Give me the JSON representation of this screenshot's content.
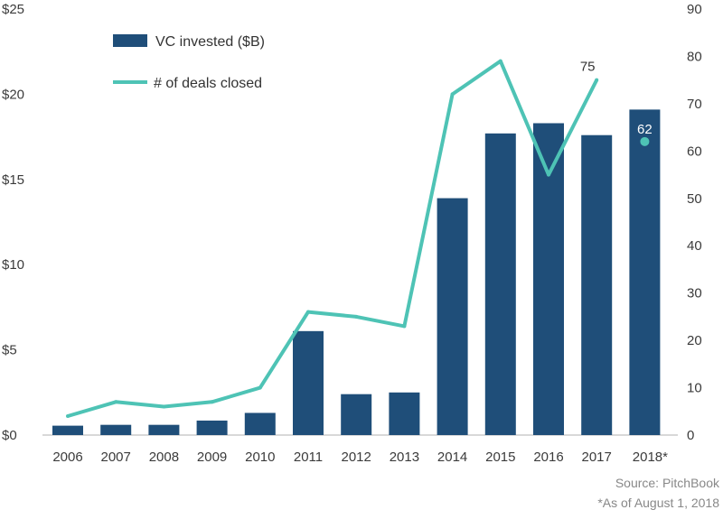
{
  "chart_data": {
    "type": "bar",
    "categories": [
      "2006",
      "2007",
      "2008",
      "2009",
      "2010",
      "2011",
      "2012",
      "2013",
      "2014",
      "2015",
      "2016",
      "2017",
      "2018*"
    ],
    "series": [
      {
        "name": "VC invested ($B)",
        "type": "bar",
        "axis": "left",
        "color": "#1f4e79",
        "values": [
          0.55,
          0.6,
          0.6,
          0.85,
          1.3,
          6.1,
          2.4,
          2.5,
          13.9,
          17.7,
          18.3,
          17.6,
          19.1
        ]
      },
      {
        "name": "# of deals closed",
        "type": "line",
        "axis": "right",
        "color": "#4ec3b5",
        "values": [
          4,
          7,
          6,
          7,
          10,
          26,
          25,
          23,
          72,
          79,
          55,
          75,
          null
        ]
      }
    ],
    "extra_points": [
      {
        "category": "2018*",
        "value": 62,
        "label": "62",
        "axis": "right"
      }
    ],
    "data_labels": [
      {
        "category": "2017",
        "value": 75,
        "label": "75"
      }
    ],
    "y_left": {
      "lim": [
        0,
        25
      ],
      "ticks": [
        0,
        5,
        10,
        15,
        20,
        25
      ],
      "tick_labels": [
        "$0",
        "$5",
        "$10",
        "$15",
        "$20",
        "$25"
      ]
    },
    "y_right": {
      "lim": [
        0,
        90
      ],
      "ticks": [
        0,
        10,
        20,
        30,
        40,
        50,
        60,
        70,
        80,
        90
      ],
      "tick_labels": [
        "0",
        "10",
        "20",
        "30",
        "40",
        "50",
        "60",
        "70",
        "80",
        "90"
      ]
    },
    "grid": false,
    "legend_position": "top-left",
    "source": "Source: PitchBook",
    "footnote": "*As of August 1, 2018"
  }
}
